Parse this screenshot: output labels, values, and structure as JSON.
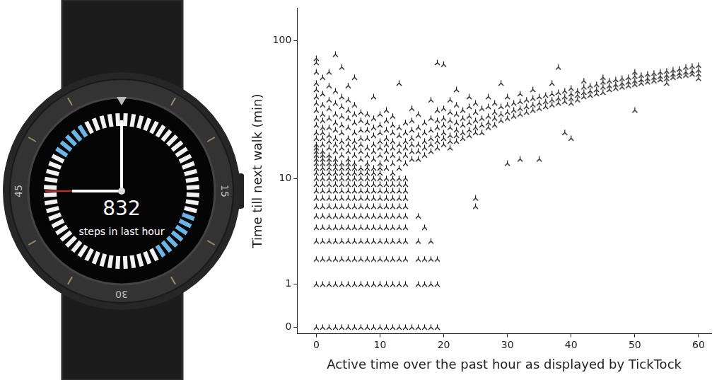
{
  "watch": {
    "steps": 832,
    "caption": "steps in last hour",
    "bezel_labels": [
      "45",
      "15",
      "30"
    ]
  },
  "chart_data": {
    "type": "scatter",
    "x_label": "Active time over the past hour as displayed by TickTock",
    "y_label": "Time till next walk (min)",
    "x": [
      0,
      0,
      0,
      0,
      0,
      0,
      0,
      0,
      0,
      0,
      0,
      0,
      0,
      0,
      0,
      0,
      0,
      0,
      0,
      0,
      0,
      0,
      0,
      0,
      0,
      0,
      0,
      0,
      0,
      0,
      0,
      1,
      1,
      1,
      1,
      1,
      1,
      1,
      1,
      1,
      1,
      1,
      1,
      1,
      1,
      1,
      1,
      1,
      1,
      1,
      1,
      1,
      1,
      1,
      1,
      1,
      1,
      2,
      2,
      2,
      2,
      2,
      2,
      2,
      2,
      2,
      2,
      2,
      2,
      2,
      2,
      2,
      2,
      2,
      2,
      2,
      2,
      2,
      2,
      2,
      2,
      2,
      3,
      3,
      3,
      3,
      3,
      3,
      3,
      3,
      3,
      3,
      3,
      3,
      3,
      3,
      3,
      3,
      3,
      3,
      3,
      3,
      3,
      3,
      3,
      3,
      4,
      4,
      4,
      4,
      4,
      4,
      4,
      4,
      4,
      4,
      4,
      4,
      4,
      4,
      4,
      4,
      4,
      4,
      4,
      4,
      4,
      4,
      4,
      5,
      5,
      5,
      5,
      5,
      5,
      5,
      5,
      5,
      5,
      5,
      5,
      5,
      5,
      5,
      5,
      5,
      5,
      5,
      5,
      5,
      5,
      5,
      6,
      6,
      6,
      6,
      6,
      6,
      6,
      6,
      6,
      6,
      6,
      6,
      6,
      6,
      6,
      6,
      6,
      6,
      6,
      6,
      6,
      6,
      7,
      7,
      7,
      7,
      7,
      7,
      7,
      7,
      7,
      7,
      7,
      7,
      7,
      7,
      7,
      7,
      7,
      7,
      7,
      7,
      8,
      8,
      8,
      8,
      8,
      8,
      8,
      8,
      8,
      8,
      8,
      8,
      8,
      8,
      8,
      8,
      8,
      8,
      8,
      8,
      9,
      9,
      9,
      9,
      9,
      9,
      9,
      9,
      9,
      9,
      9,
      9,
      9,
      9,
      9,
      9,
      9,
      9,
      9,
      9,
      10,
      10,
      10,
      10,
      10,
      10,
      10,
      10,
      10,
      10,
      10,
      10,
      10,
      10,
      10,
      10,
      10,
      10,
      10,
      10,
      11,
      11,
      11,
      11,
      11,
      11,
      11,
      11,
      11,
      11,
      11,
      11,
      11,
      11,
      11,
      11,
      11,
      11,
      11,
      12,
      12,
      12,
      12,
      12,
      12,
      12,
      12,
      12,
      12,
      12,
      12,
      12,
      12,
      12,
      12,
      12,
      12,
      12,
      13,
      13,
      13,
      13,
      13,
      13,
      13,
      13,
      13,
      13,
      13,
      13,
      13,
      13,
      13,
      13,
      13,
      13,
      14,
      14,
      14,
      14,
      14,
      14,
      14,
      14,
      14,
      14,
      14,
      14,
      14,
      14,
      14,
      14,
      14,
      15,
      15,
      15,
      15,
      15,
      15,
      15,
      15,
      16,
      16,
      16,
      16,
      16,
      16,
      16,
      16,
      16,
      16,
      16,
      17,
      17,
      17,
      17,
      17,
      17,
      17,
      17,
      17,
      18,
      18,
      18,
      18,
      18,
      18,
      18,
      18,
      18,
      18,
      19,
      19,
      19,
      19,
      19,
      19,
      19,
      19,
      19,
      19,
      20,
      20,
      20,
      20,
      20,
      20,
      20,
      21,
      21,
      21,
      21,
      21,
      21,
      21,
      22,
      22,
      22,
      22,
      22,
      22,
      22,
      23,
      23,
      23,
      23,
      23,
      24,
      24,
      24,
      24,
      24,
      24,
      25,
      25,
      25,
      25,
      25,
      25,
      25,
      26,
      26,
      26,
      26,
      27,
      27,
      27,
      27,
      27,
      28,
      28,
      28,
      28,
      29,
      29,
      29,
      29,
      30,
      30,
      30,
      30,
      30,
      31,
      31,
      31,
      32,
      32,
      32,
      32,
      32,
      33,
      33,
      33,
      34,
      34,
      34,
      34,
      35,
      35,
      35,
      35,
      36,
      36,
      36,
      37,
      37,
      37,
      37,
      38,
      38,
      38,
      38,
      39,
      39,
      39,
      39,
      40,
      40,
      40,
      40,
      40,
      41,
      41,
      41,
      42,
      42,
      42,
      42,
      43,
      43,
      43,
      44,
      44,
      44,
      45,
      45,
      45,
      45,
      46,
      46,
      46,
      47,
      47,
      47,
      48,
      48,
      48,
      49,
      49,
      49,
      50,
      50,
      50,
      50,
      50,
      51,
      51,
      51,
      52,
      52,
      52,
      53,
      53,
      53,
      54,
      54,
      54,
      55,
      55,
      55,
      55,
      56,
      56,
      56,
      57,
      57,
      57,
      58,
      58,
      58,
      59,
      59,
      59,
      60,
      60,
      60,
      60
    ],
    "values": [
      0,
      1,
      2,
      3,
      4,
      5,
      6,
      7,
      8,
      9,
      10,
      11,
      12,
      13,
      14,
      15,
      16,
      17,
      18,
      20,
      22,
      25,
      28,
      32,
      36,
      40,
      45,
      50,
      60,
      70,
      75,
      0,
      1,
      2,
      3,
      4,
      5,
      6,
      7,
      8,
      9,
      10,
      11,
      12,
      13,
      14,
      15,
      16,
      18,
      20,
      22,
      24,
      27,
      30,
      35,
      42,
      55,
      0,
      1,
      2,
      3,
      4,
      5,
      6,
      7,
      8,
      9,
      10,
      11,
      12,
      13,
      14,
      15,
      17,
      19,
      21,
      24,
      28,
      33,
      38,
      48,
      60,
      0,
      1,
      2,
      3,
      4,
      5,
      6,
      7,
      8,
      9,
      10,
      11,
      12,
      13,
      14,
      16,
      18,
      20,
      23,
      26,
      30,
      36,
      44,
      80,
      0,
      1,
      2,
      3,
      4,
      5,
      6,
      7,
      8,
      9,
      10,
      11,
      12,
      13,
      15,
      17,
      19,
      22,
      25,
      29,
      34,
      40,
      65,
      0,
      1,
      2,
      3,
      4,
      5,
      6,
      7,
      8,
      9,
      10,
      11,
      12,
      13,
      14,
      16,
      18,
      20,
      24,
      28,
      32,
      38,
      48,
      0,
      1,
      2,
      3,
      4,
      5,
      6,
      7,
      8,
      9,
      10,
      11,
      12,
      13,
      15,
      17,
      19,
      22,
      26,
      30,
      35,
      55,
      0,
      1,
      2,
      3,
      4,
      5,
      6,
      7,
      8,
      9,
      10,
      11,
      12,
      14,
      16,
      18,
      20,
      23,
      27,
      31,
      0,
      1,
      2,
      3,
      4,
      5,
      6,
      7,
      8,
      9,
      10,
      11,
      12,
      13,
      15,
      17,
      20,
      23,
      26,
      30,
      0,
      1,
      2,
      3,
      4,
      5,
      6,
      7,
      8,
      9,
      10,
      11,
      12,
      14,
      16,
      18,
      21,
      24,
      28,
      40,
      0,
      1,
      2,
      3,
      4,
      5,
      6,
      7,
      8,
      9,
      10,
      11,
      12,
      13,
      15,
      17,
      19,
      22,
      25,
      30,
      0,
      1,
      2,
      3,
      4,
      5,
      6,
      7,
      8,
      9,
      10,
      12,
      14,
      16,
      18,
      20,
      23,
      27,
      32,
      0,
      1,
      2,
      3,
      4,
      5,
      6,
      7,
      8,
      9,
      10,
      11,
      13,
      15,
      17,
      19,
      22,
      25,
      29,
      0,
      1,
      2,
      3,
      4,
      5,
      6,
      7,
      8,
      9,
      10,
      12,
      14,
      16,
      18,
      21,
      24,
      50,
      0,
      1,
      2,
      3,
      4,
      5,
      6,
      7,
      8,
      9,
      10,
      13,
      15,
      17,
      19,
      22,
      26,
      0,
      14,
      16,
      18,
      20,
      23,
      27,
      33,
      0,
      1,
      2,
      3,
      5,
      14,
      16,
      18,
      21,
      24,
      30,
      0,
      1,
      2,
      4,
      15,
      17,
      19,
      22,
      26,
      0,
      1,
      2,
      3,
      16,
      18,
      20,
      23,
      28,
      38,
      0,
      1,
      2,
      17,
      19,
      21,
      24,
      27,
      32,
      70,
      18,
      20,
      22,
      25,
      28,
      33,
      68,
      17,
      19,
      21,
      24,
      27,
      31,
      38,
      19,
      21,
      23,
      26,
      30,
      35,
      45,
      20,
      22,
      25,
      28,
      32,
      21,
      23,
      26,
      29,
      34,
      40,
      6,
      7,
      22,
      24,
      27,
      31,
      36,
      22,
      25,
      28,
      33,
      24,
      26,
      29,
      34,
      40,
      25,
      28,
      31,
      36,
      27,
      30,
      34,
      50,
      13,
      28,
      31,
      35,
      40,
      29,
      32,
      36,
      14,
      30,
      33,
      37,
      42,
      31,
      34,
      38,
      32,
      35,
      39,
      45,
      14,
      33,
      36,
      40,
      34,
      37,
      41,
      35,
      38,
      42,
      50,
      36,
      39,
      43,
      65,
      22,
      37,
      40,
      44,
      20,
      36,
      39,
      42,
      46,
      38,
      41,
      44,
      40,
      43,
      47,
      52,
      41,
      44,
      48,
      42,
      45,
      49,
      43,
      47,
      51,
      55,
      45,
      48,
      52,
      46,
      49,
      53,
      47,
      50,
      54,
      48,
      51,
      55,
      32,
      49,
      52,
      56,
      60,
      50,
      53,
      57,
      51,
      54,
      58,
      52,
      55,
      59,
      53,
      56,
      60,
      50,
      54,
      57,
      61,
      55,
      58,
      62,
      56,
      59,
      63,
      57,
      60,
      65,
      58,
      61,
      66,
      54,
      58,
      62,
      67
    ],
    "color": "#000000",
    "marker": "tri_up",
    "xlim": [
      -3,
      62
    ],
    "ylim": [
      -0.1,
      170
    ],
    "xticks": [
      0,
      10,
      20,
      30,
      40,
      50,
      60
    ],
    "yticks": [
      0,
      1,
      10,
      100
    ],
    "log": "y",
    "grid": false
  }
}
